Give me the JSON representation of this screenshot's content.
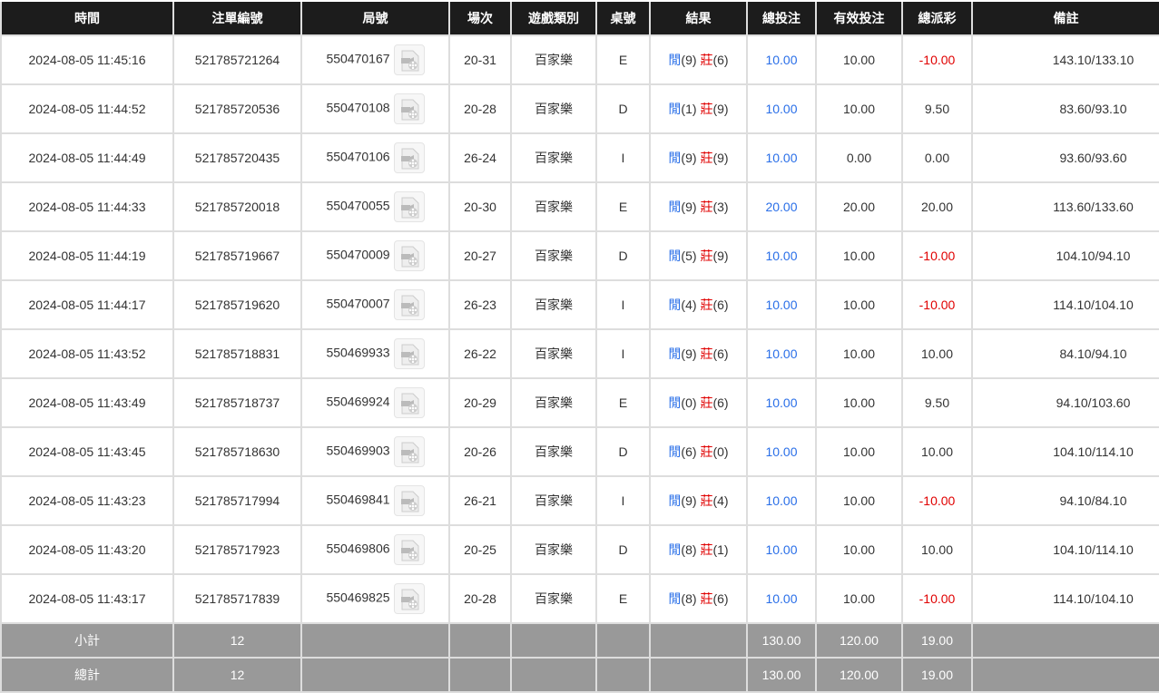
{
  "headers": [
    "時間",
    "注單編號",
    "局號",
    "場次",
    "遊戲類別",
    "桌號",
    "結果",
    "總投注",
    "有效投注",
    "總派彩",
    "備註"
  ],
  "colors": {
    "blue": "#2a6fe8",
    "red": "#e00000",
    "header_bg": "#1c1c1c",
    "summary_bg": "#999999"
  },
  "result_labels": {
    "player": "閒",
    "banker": "莊"
  },
  "rows": [
    {
      "time": "2024-08-05 11:45:16",
      "bet_id": "521785721264",
      "round": "550470167",
      "shoe": "20-31",
      "game": "百家樂",
      "table": "E",
      "player": "(9)",
      "banker": "(6)",
      "total": "10.00",
      "valid": "10.00",
      "payout": "-10.00",
      "remark": "143.10/133.10"
    },
    {
      "time": "2024-08-05 11:44:52",
      "bet_id": "521785720536",
      "round": "550470108",
      "shoe": "20-28",
      "game": "百家樂",
      "table": "D",
      "player": "(1)",
      "banker": "(9)",
      "total": "10.00",
      "valid": "10.00",
      "payout": "9.50",
      "remark": "83.60/93.10"
    },
    {
      "time": "2024-08-05 11:44:49",
      "bet_id": "521785720435",
      "round": "550470106",
      "shoe": "26-24",
      "game": "百家樂",
      "table": "I",
      "player": "(9)",
      "banker": "(9)",
      "total": "10.00",
      "valid": "0.00",
      "payout": "0.00",
      "remark": "93.60/93.60"
    },
    {
      "time": "2024-08-05 11:44:33",
      "bet_id": "521785720018",
      "round": "550470055",
      "shoe": "20-30",
      "game": "百家樂",
      "table": "E",
      "player": "(9)",
      "banker": "(3)",
      "total": "20.00",
      "valid": "20.00",
      "payout": "20.00",
      "remark": "113.60/133.60"
    },
    {
      "time": "2024-08-05 11:44:19",
      "bet_id": "521785719667",
      "round": "550470009",
      "shoe": "20-27",
      "game": "百家樂",
      "table": "D",
      "player": "(5)",
      "banker": "(9)",
      "total": "10.00",
      "valid": "10.00",
      "payout": "-10.00",
      "remark": "104.10/94.10"
    },
    {
      "time": "2024-08-05 11:44:17",
      "bet_id": "521785719620",
      "round": "550470007",
      "shoe": "26-23",
      "game": "百家樂",
      "table": "I",
      "player": "(4)",
      "banker": "(6)",
      "total": "10.00",
      "valid": "10.00",
      "payout": "-10.00",
      "remark": "114.10/104.10"
    },
    {
      "time": "2024-08-05 11:43:52",
      "bet_id": "521785718831",
      "round": "550469933",
      "shoe": "26-22",
      "game": "百家樂",
      "table": "I",
      "player": "(9)",
      "banker": "(6)",
      "total": "10.00",
      "valid": "10.00",
      "payout": "10.00",
      "remark": "84.10/94.10"
    },
    {
      "time": "2024-08-05 11:43:49",
      "bet_id": "521785718737",
      "round": "550469924",
      "shoe": "20-29",
      "game": "百家樂",
      "table": "E",
      "player": "(0)",
      "banker": "(6)",
      "total": "10.00",
      "valid": "10.00",
      "payout": "9.50",
      "remark": "94.10/103.60"
    },
    {
      "time": "2024-08-05 11:43:45",
      "bet_id": "521785718630",
      "round": "550469903",
      "shoe": "20-26",
      "game": "百家樂",
      "table": "D",
      "player": "(6)",
      "banker": "(0)",
      "total": "10.00",
      "valid": "10.00",
      "payout": "10.00",
      "remark": "104.10/114.10"
    },
    {
      "time": "2024-08-05 11:43:23",
      "bet_id": "521785717994",
      "round": "550469841",
      "shoe": "26-21",
      "game": "百家樂",
      "table": "I",
      "player": "(9)",
      "banker": "(4)",
      "total": "10.00",
      "valid": "10.00",
      "payout": "-10.00",
      "remark": "94.10/84.10"
    },
    {
      "time": "2024-08-05 11:43:20",
      "bet_id": "521785717923",
      "round": "550469806",
      "shoe": "20-25",
      "game": "百家樂",
      "table": "D",
      "player": "(8)",
      "banker": "(1)",
      "total": "10.00",
      "valid": "10.00",
      "payout": "10.00",
      "remark": "104.10/114.10"
    },
    {
      "time": "2024-08-05 11:43:17",
      "bet_id": "521785717839",
      "round": "550469825",
      "shoe": "20-28",
      "game": "百家樂",
      "table": "E",
      "player": "(8)",
      "banker": "(6)",
      "total": "10.00",
      "valid": "10.00",
      "payout": "-10.00",
      "remark": "114.10/104.10"
    }
  ],
  "subtotal": {
    "label": "小計",
    "count": "12",
    "total": "130.00",
    "valid": "120.00",
    "payout": "19.00"
  },
  "grand_total": {
    "label": "總計",
    "count": "12",
    "total": "130.00",
    "valid": "120.00",
    "payout": "19.00"
  }
}
